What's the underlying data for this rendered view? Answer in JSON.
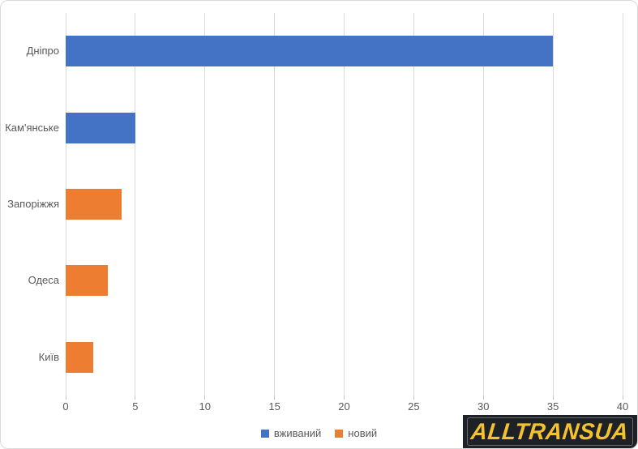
{
  "chart_data": {
    "type": "bar",
    "orientation": "horizontal",
    "title": "",
    "xlabel": "",
    "ylabel": "",
    "categories": [
      "Дніпро",
      "Кам'янське",
      "Запоріжжя",
      "Одеса",
      "Київ"
    ],
    "series": [
      {
        "name": "вживаний",
        "color": "#4472C4",
        "values": [
          35,
          5,
          0,
          0,
          0
        ]
      },
      {
        "name": "новий",
        "color": "#ED7D31",
        "values": [
          0,
          0,
          4,
          3,
          2
        ]
      }
    ],
    "xlim": [
      0,
      40
    ],
    "xticks": [
      0,
      5,
      10,
      15,
      20,
      25,
      30,
      35,
      40
    ],
    "grid": true,
    "legend_position": "bottom"
  },
  "logo": {
    "text": "ALLTRANSUA",
    "background": "#1E2126",
    "color": "#F2C230"
  }
}
